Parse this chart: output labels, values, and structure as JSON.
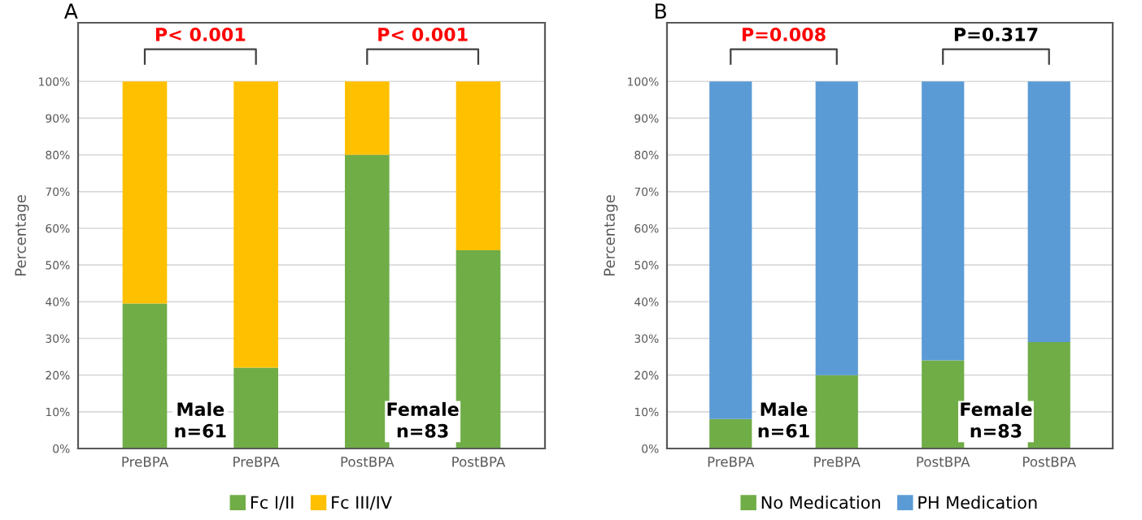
{
  "chart_data": [
    {
      "type": "bar",
      "title": "A",
      "ylabel": "Percentage",
      "stacked": true,
      "categories": [
        "PreBPA",
        "PreBPA",
        "PostBPA",
        "PostBPA"
      ],
      "series": [
        {
          "name": "Fc I/II",
          "color": "#70ad47",
          "values": [
            39.5,
            22,
            80,
            54
          ]
        },
        {
          "name": "Fc III/IV",
          "color": "#ffc000",
          "values": [
            60.5,
            78,
            20,
            46
          ]
        }
      ],
      "ylim": [
        0,
        116
      ],
      "yticks": [
        {
          "value": 0,
          "label": "0%"
        },
        {
          "value": 10,
          "label": "10%"
        },
        {
          "value": 20,
          "label": "20%"
        },
        {
          "value": 30,
          "label": "30%"
        },
        {
          "value": 40,
          "label": "40%"
        },
        {
          "value": 50,
          "label": "50%"
        },
        {
          "value": 60,
          "label": "60%"
        },
        {
          "value": 70,
          "label": "70%"
        },
        {
          "value": 80,
          "label": "80%"
        },
        {
          "value": 90,
          "label": "90%"
        },
        {
          "value": 100,
          "label": "100%"
        }
      ],
      "grid": "y",
      "legend": "bottom",
      "annotations": [
        "P< 0.001",
        "P< 0.001",
        "Male\nn=61",
        "Female\nn=83"
      ]
    },
    {
      "type": "bar",
      "title": "B",
      "ylabel": "Percentage",
      "stacked": true,
      "categories": [
        "PreBPA",
        "PreBPA",
        "PostBPA",
        "PostBPA"
      ],
      "series": [
        {
          "name": "No Medication",
          "color": "#70ad47",
          "values": [
            8,
            20,
            24,
            29
          ]
        },
        {
          "name": "PH Medication",
          "color": "#5b9bd5",
          "values": [
            92,
            80,
            76,
            71
          ]
        }
      ],
      "ylim": [
        0,
        116
      ],
      "yticks": [
        {
          "value": 0,
          "label": "0%"
        },
        {
          "value": 10,
          "label": "10%"
        },
        {
          "value": 20,
          "label": "20%"
        },
        {
          "value": 30,
          "label": "30%"
        },
        {
          "value": 40,
          "label": "40%"
        },
        {
          "value": 50,
          "label": "50%"
        },
        {
          "value": 60,
          "label": "60%"
        },
        {
          "value": 70,
          "label": "70%"
        },
        {
          "value": 80,
          "label": "80%"
        },
        {
          "value": 90,
          "label": "90%"
        },
        {
          "value": 100,
          "label": "100%"
        }
      ],
      "grid": "y",
      "legend": "bottom",
      "annotations": [
        "P=0.008",
        "P=0.317",
        "Male\nn=61",
        "Female\nn=83"
      ]
    }
  ]
}
